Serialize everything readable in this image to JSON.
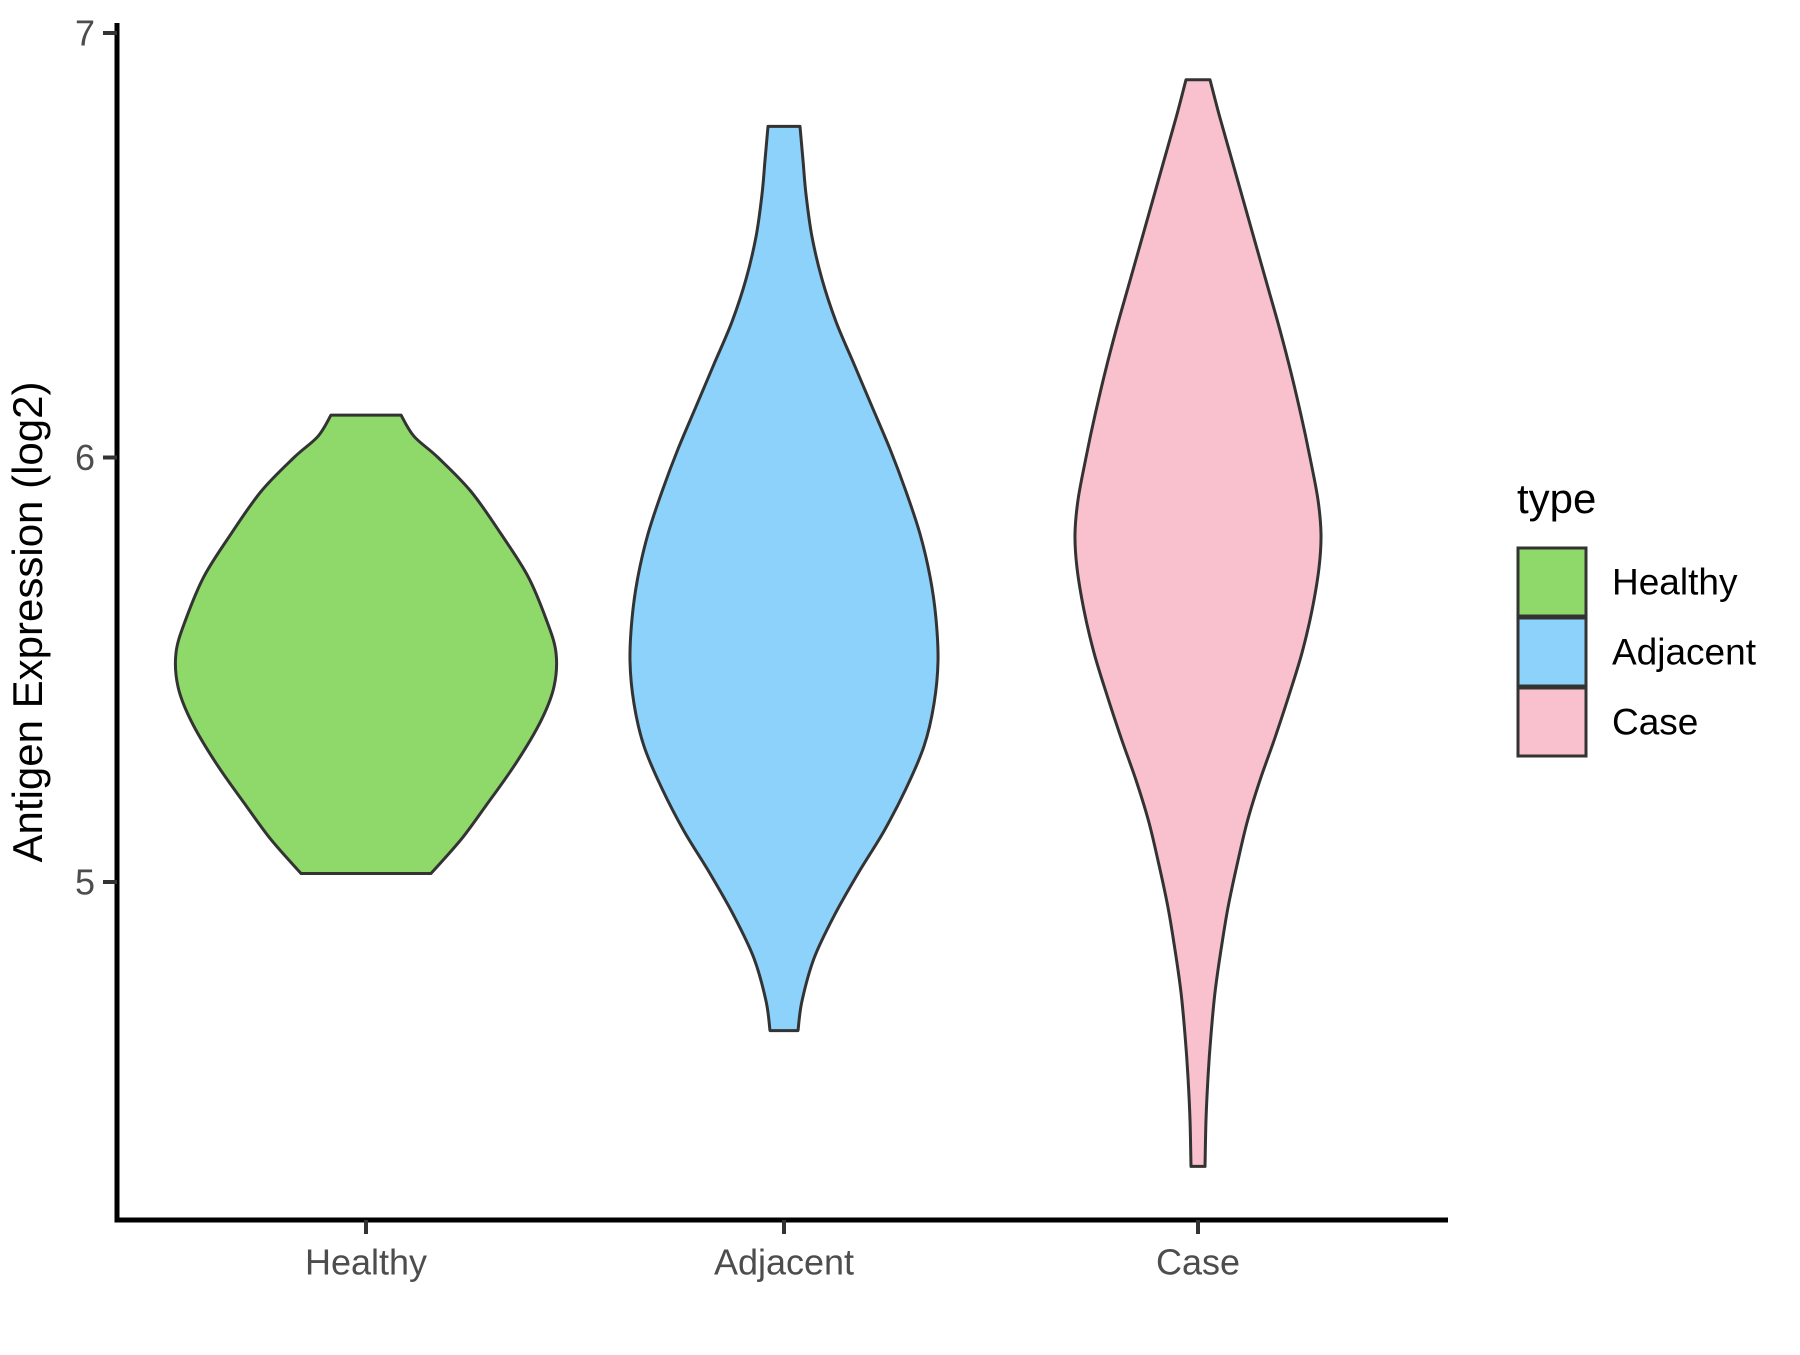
{
  "chart_data": {
    "type": "violin",
    "title": "",
    "xlabel": "",
    "ylabel": "Antigen Expression (log2)",
    "categories": [
      "Healthy",
      "Adjacent",
      "Case"
    ],
    "y_axis": {
      "ticks": [
        5,
        6,
        7
      ],
      "range": [
        4.2,
        7.02
      ],
      "grid": false
    },
    "legend": {
      "title": "type",
      "position": "right",
      "entries": [
        {
          "label": "Healthy",
          "color": "#8FD96B"
        },
        {
          "label": "Adjacent",
          "color": "#8DD2FB"
        },
        {
          "label": "Case",
          "color": "#F8C1CD"
        }
      ]
    },
    "style": {
      "violin_outline_color": "#333333",
      "axis_line_color": "#000000",
      "tick_mark_color": "#333333",
      "tick_label_color": "#4D4D4D",
      "background": "#FFFFFF"
    },
    "violins": [
      {
        "category": "Healthy",
        "color": "#8FD96B",
        "trim_min": 5.02,
        "trim_max": 6.1,
        "peak_value": 5.54,
        "profile": [
          [
            6.1,
            35
          ],
          [
            6.05,
            48
          ],
          [
            6.0,
            72
          ],
          [
            5.92,
            105
          ],
          [
            5.82,
            135
          ],
          [
            5.72,
            162
          ],
          [
            5.62,
            180
          ],
          [
            5.54,
            190
          ],
          [
            5.46,
            188
          ],
          [
            5.38,
            175
          ],
          [
            5.28,
            150
          ],
          [
            5.18,
            120
          ],
          [
            5.1,
            95
          ],
          [
            5.02,
            65
          ]
        ]
      },
      {
        "category": "Adjacent",
        "color": "#8DD2FB",
        "trim_min": 4.65,
        "trim_max": 6.78,
        "peak_value": 5.52,
        "profile": [
          [
            6.78,
            16
          ],
          [
            6.7,
            19
          ],
          [
            6.62,
            22
          ],
          [
            6.52,
            28
          ],
          [
            6.42,
            38
          ],
          [
            6.32,
            52
          ],
          [
            6.22,
            70
          ],
          [
            6.12,
            88
          ],
          [
            6.02,
            106
          ],
          [
            5.92,
            122
          ],
          [
            5.82,
            136
          ],
          [
            5.72,
            146
          ],
          [
            5.62,
            152
          ],
          [
            5.52,
            154
          ],
          [
            5.42,
            150
          ],
          [
            5.32,
            140
          ],
          [
            5.22,
            122
          ],
          [
            5.12,
            100
          ],
          [
            5.02,
            74
          ],
          [
            4.92,
            50
          ],
          [
            4.82,
            30
          ],
          [
            4.72,
            18
          ],
          [
            4.65,
            14
          ]
        ]
      },
      {
        "category": "Case",
        "color": "#F8C1CD",
        "trim_min": 4.33,
        "trim_max": 6.89,
        "peak_value": 5.82,
        "profile": [
          [
            6.89,
            12
          ],
          [
            6.8,
            22
          ],
          [
            6.7,
            34
          ],
          [
            6.6,
            46
          ],
          [
            6.5,
            58
          ],
          [
            6.4,
            70
          ],
          [
            6.3,
            82
          ],
          [
            6.2,
            93
          ],
          [
            6.1,
            103
          ],
          [
            6.0,
            112
          ],
          [
            5.9,
            120
          ],
          [
            5.82,
            123
          ],
          [
            5.74,
            121
          ],
          [
            5.64,
            114
          ],
          [
            5.54,
            104
          ],
          [
            5.44,
            91
          ],
          [
            5.34,
            77
          ],
          [
            5.24,
            62
          ],
          [
            5.14,
            49
          ],
          [
            5.04,
            39
          ],
          [
            4.94,
            30
          ],
          [
            4.84,
            23
          ],
          [
            4.74,
            17
          ],
          [
            4.64,
            13
          ],
          [
            4.54,
            10
          ],
          [
            4.44,
            8
          ],
          [
            4.33,
            7
          ]
        ]
      }
    ]
  }
}
